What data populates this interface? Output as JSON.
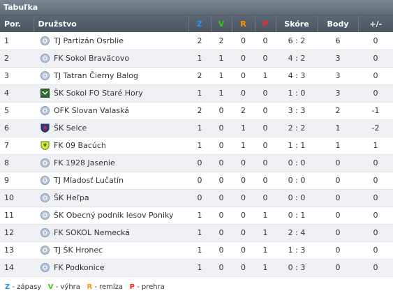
{
  "title": "Tabuľka",
  "headers": {
    "pos": "Por.",
    "team": "Družstvo",
    "z": "Z",
    "v": "V",
    "r": "R",
    "p": "P",
    "score": "Skóre",
    "points": "Body",
    "diff": "+/-"
  },
  "colors": {
    "z": "#1e90ff",
    "v": "#33cc00",
    "r": "#ff9900",
    "p": "#ff2222"
  },
  "rows": [
    {
      "pos": "1",
      "team": "TJ Partizán Osrblie",
      "logo": "club-crest-icon",
      "z": "2",
      "v": "2",
      "r": "0",
      "p": "0",
      "score": "6 : 2",
      "points": "6",
      "diff": "0"
    },
    {
      "pos": "2",
      "team": "FK Sokol Braväcovo",
      "logo": "club-crest-icon",
      "z": "1",
      "v": "1",
      "r": "0",
      "p": "0",
      "score": "4 : 2",
      "points": "3",
      "diff": "0"
    },
    {
      "pos": "3",
      "team": "TJ Tatran Čierny Balog",
      "logo": "club-crest-icon",
      "z": "2",
      "v": "1",
      "r": "0",
      "p": "1",
      "score": "4 : 3",
      "points": "3",
      "diff": "0"
    },
    {
      "pos": "4",
      "team": "ŠK Sokol FO Staré Hory",
      "logo": "sokol-crest-icon",
      "z": "1",
      "v": "1",
      "r": "0",
      "p": "0",
      "score": "1 : 0",
      "points": "3",
      "diff": "0"
    },
    {
      "pos": "5",
      "team": "OFK Slovan Valaská",
      "logo": "club-crest-icon",
      "z": "2",
      "v": "0",
      "r": "2",
      "p": "0",
      "score": "3 : 3",
      "points": "2",
      "diff": "-1"
    },
    {
      "pos": "6",
      "team": "ŠK Selce",
      "logo": "selce-crest-icon",
      "z": "1",
      "v": "0",
      "r": "1",
      "p": "0",
      "score": "2 : 2",
      "points": "1",
      "diff": "-2"
    },
    {
      "pos": "7",
      "team": "FK 09 Bacúch",
      "logo": "bacuch-crest-icon",
      "z": "1",
      "v": "0",
      "r": "1",
      "p": "0",
      "score": "1 : 1",
      "points": "1",
      "diff": "1"
    },
    {
      "pos": "8",
      "team": "FK 1928 Jasenie",
      "logo": "club-crest-icon",
      "z": "0",
      "v": "0",
      "r": "0",
      "p": "0",
      "score": "0 : 0",
      "points": "0",
      "diff": "0"
    },
    {
      "pos": "9",
      "team": "TJ Mladosť Lučatín",
      "logo": "club-crest-icon",
      "z": "0",
      "v": "0",
      "r": "0",
      "p": "0",
      "score": "0 : 0",
      "points": "0",
      "diff": "0"
    },
    {
      "pos": "10",
      "team": "ŠK Heľpa",
      "logo": "club-crest-icon",
      "z": "0",
      "v": "0",
      "r": "0",
      "p": "0",
      "score": "0 : 0",
      "points": "0",
      "diff": "0"
    },
    {
      "pos": "11",
      "team": "ŠK Obecný podnik lesov Poniky",
      "logo": "club-crest-icon",
      "z": "1",
      "v": "0",
      "r": "0",
      "p": "1",
      "score": "0 : 1",
      "points": "0",
      "diff": "0"
    },
    {
      "pos": "12",
      "team": "FK SOKOL Nemecká",
      "logo": "club-crest-icon",
      "z": "1",
      "v": "0",
      "r": "0",
      "p": "1",
      "score": "2 : 4",
      "points": "0",
      "diff": "0"
    },
    {
      "pos": "13",
      "team": "TJ ŠK Hronec",
      "logo": "club-crest-icon",
      "z": "1",
      "v": "0",
      "r": "0",
      "p": "1",
      "score": "1 : 3",
      "points": "0",
      "diff": "0"
    },
    {
      "pos": "14",
      "team": "FK Podkonice",
      "logo": "club-crest-icon",
      "z": "1",
      "v": "0",
      "r": "0",
      "p": "1",
      "score": "0 : 3",
      "points": "0",
      "diff": "0"
    }
  ],
  "legend": {
    "z_key": "Z",
    "z_text": " - zápasy",
    "v_key": "V",
    "v_text": " - výhra",
    "r_key": "R",
    "r_text": " - remíza",
    "p_key": "P",
    "p_text": " - prehra"
  }
}
